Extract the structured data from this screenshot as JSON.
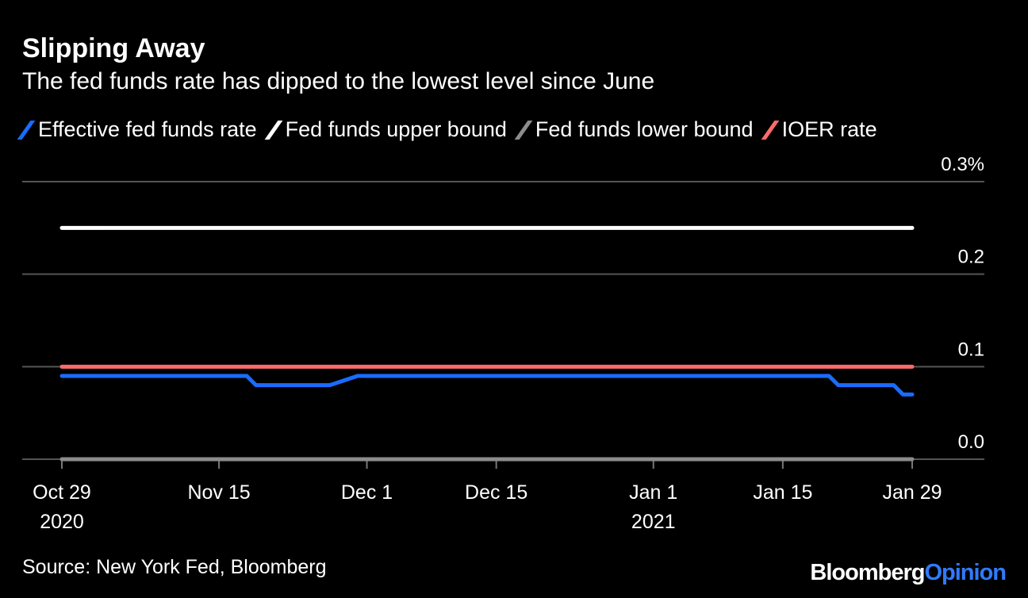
{
  "title": "Slipping Away",
  "subtitle": "The fed funds rate has dipped to the lowest level since June",
  "source": "Source: New York Fed, Bloomberg",
  "logo": {
    "part1": "Bloomberg",
    "part2": "Opinion",
    "color2": "#2f7bff"
  },
  "chart_data": {
    "type": "line",
    "ylim": [
      0,
      0.3
    ],
    "yticks": [
      {
        "value": 0,
        "label": "0.0"
      },
      {
        "value": 0.1,
        "label": "0.1"
      },
      {
        "value": 0.2,
        "label": "0.2"
      },
      {
        "value": 0.3,
        "label": "0.3%"
      }
    ],
    "xlim": [
      "2020-10-29",
      "2021-01-29"
    ],
    "xticks": [
      {
        "date": "2020-10-29",
        "label": "Oct 29",
        "sub": "2020"
      },
      {
        "date": "2020-11-15",
        "label": "Nov 15",
        "sub": ""
      },
      {
        "date": "2020-12-01",
        "label": "Dec 1",
        "sub": ""
      },
      {
        "date": "2020-12-15",
        "label": "Dec 15",
        "sub": ""
      },
      {
        "date": "2021-01-01",
        "label": "Jan 1",
        "sub": "2021"
      },
      {
        "date": "2021-01-15",
        "label": "Jan 15",
        "sub": ""
      },
      {
        "date": "2021-01-29",
        "label": "Jan 29",
        "sub": ""
      }
    ],
    "series": [
      {
        "name": "Effective fed funds rate",
        "color": "#1a6cff",
        "points": [
          [
            "2020-10-29",
            0.09
          ],
          [
            "2020-11-18",
            0.09
          ],
          [
            "2020-11-19",
            0.08
          ],
          [
            "2020-11-27",
            0.08
          ],
          [
            "2020-11-30",
            0.09
          ],
          [
            "2021-01-20",
            0.09
          ],
          [
            "2021-01-21",
            0.08
          ],
          [
            "2021-01-27",
            0.08
          ],
          [
            "2021-01-28",
            0.07
          ],
          [
            "2021-01-29",
            0.07
          ]
        ]
      },
      {
        "name": "Fed funds upper bound",
        "color": "#ffffff",
        "points": [
          [
            "2020-10-29",
            0.25
          ],
          [
            "2021-01-29",
            0.25
          ]
        ]
      },
      {
        "name": "Fed funds lower bound",
        "color": "#8c8c8c",
        "points": [
          [
            "2020-10-29",
            0
          ],
          [
            "2021-01-29",
            0
          ]
        ]
      },
      {
        "name": "IOER rate",
        "color": "#ff6b6b",
        "points": [
          [
            "2020-10-29",
            0.1
          ],
          [
            "2021-01-29",
            0.1
          ]
        ]
      }
    ]
  }
}
